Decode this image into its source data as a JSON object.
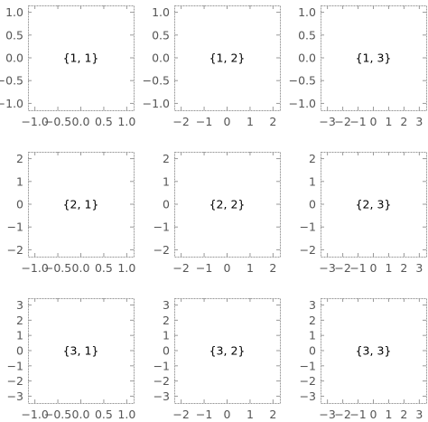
{
  "chart_data": {
    "type": "grid",
    "rows": 3,
    "cols": 3,
    "title": "",
    "panels": [
      {
        "row": 1,
        "col": 1,
        "label": "{1, 1}",
        "xlim": [
          -1.15,
          1.15
        ],
        "ylim": [
          -1.15,
          1.15
        ],
        "xticks": [
          -1.0,
          -0.5,
          0.0,
          0.5,
          1.0
        ],
        "xtick_labels": [
          "−1.0",
          "−0.5",
          "0.0",
          "0.5",
          "1.0"
        ],
        "yticks": [
          -1.0,
          -0.5,
          0.0,
          0.5,
          1.0
        ],
        "ytick_labels": [
          "−1.0",
          "−0.5",
          "0.0",
          "0.5",
          "1.0"
        ]
      },
      {
        "row": 1,
        "col": 2,
        "label": "{1, 2}",
        "xlim": [
          -2.3,
          2.3
        ],
        "ylim": [
          -1.15,
          1.15
        ],
        "xticks": [
          -2,
          -1,
          0,
          1,
          2
        ],
        "xtick_labels": [
          "−2",
          "−1",
          "0",
          "1",
          "2"
        ],
        "yticks": [
          -1.0,
          -0.5,
          0.0,
          0.5,
          1.0
        ],
        "ytick_labels": [
          "−1.0",
          "−0.5",
          "0.0",
          "0.5",
          "1.0"
        ]
      },
      {
        "row": 1,
        "col": 3,
        "label": "{1, 3}",
        "xlim": [
          -3.45,
          3.45
        ],
        "ylim": [
          -1.15,
          1.15
        ],
        "xticks": [
          -3,
          -2,
          -1,
          0,
          1,
          2,
          3
        ],
        "xtick_labels": [
          "−3",
          "−2",
          "−1",
          "0",
          "1",
          "2",
          "3"
        ],
        "yticks": [
          -1.0,
          -0.5,
          0.0,
          0.5,
          1.0
        ],
        "ytick_labels": [
          "−1.0",
          "−0.5",
          "0.0",
          "0.5",
          "1.0"
        ]
      },
      {
        "row": 2,
        "col": 1,
        "label": "{2, 1}",
        "xlim": [
          -1.15,
          1.15
        ],
        "ylim": [
          -2.3,
          2.3
        ],
        "xticks": [
          -1.0,
          -0.5,
          0.0,
          0.5,
          1.0
        ],
        "xtick_labels": [
          "−1.0",
          "−0.5",
          "0.0",
          "0.5",
          "1.0"
        ],
        "yticks": [
          -2,
          -1,
          0,
          1,
          2
        ],
        "ytick_labels": [
          "−2",
          "−1",
          "0",
          "1",
          "2"
        ]
      },
      {
        "row": 2,
        "col": 2,
        "label": "{2, 2}",
        "xlim": [
          -2.3,
          2.3
        ],
        "ylim": [
          -2.3,
          2.3
        ],
        "xticks": [
          -2,
          -1,
          0,
          1,
          2
        ],
        "xtick_labels": [
          "−2",
          "−1",
          "0",
          "1",
          "2"
        ],
        "yticks": [
          -2,
          -1,
          0,
          1,
          2
        ],
        "ytick_labels": [
          "−2",
          "−1",
          "0",
          "1",
          "2"
        ]
      },
      {
        "row": 2,
        "col": 3,
        "label": "{2, 3}",
        "xlim": [
          -3.45,
          3.45
        ],
        "ylim": [
          -2.3,
          2.3
        ],
        "xticks": [
          -3,
          -2,
          -1,
          0,
          1,
          2,
          3
        ],
        "xtick_labels": [
          "−3",
          "−2",
          "−1",
          "0",
          "1",
          "2",
          "3"
        ],
        "yticks": [
          -2,
          -1,
          0,
          1,
          2
        ],
        "ytick_labels": [
          "−2",
          "−1",
          "0",
          "1",
          "2"
        ]
      },
      {
        "row": 3,
        "col": 1,
        "label": "{3, 1}",
        "xlim": [
          -1.15,
          1.15
        ],
        "ylim": [
          -3.45,
          3.45
        ],
        "xticks": [
          -1.0,
          -0.5,
          0.0,
          0.5,
          1.0
        ],
        "xtick_labels": [
          "−1.0",
          "−0.5",
          "0.0",
          "0.5",
          "1.0"
        ],
        "yticks": [
          -3,
          -2,
          -1,
          0,
          1,
          2,
          3
        ],
        "ytick_labels": [
          "−3",
          "−2",
          "−1",
          "0",
          "1",
          "2",
          "3"
        ]
      },
      {
        "row": 3,
        "col": 2,
        "label": "{3, 2}",
        "xlim": [
          -2.3,
          2.3
        ],
        "ylim": [
          -3.45,
          3.45
        ],
        "xticks": [
          -2,
          -1,
          0,
          1,
          2
        ],
        "xtick_labels": [
          "−2",
          "−1",
          "0",
          "1",
          "2"
        ],
        "yticks": [
          -3,
          -2,
          -1,
          0,
          1,
          2,
          3
        ],
        "ytick_labels": [
          "−3",
          "−2",
          "−1",
          "0",
          "1",
          "2",
          "3"
        ]
      },
      {
        "row": 3,
        "col": 3,
        "label": "{3, 3}",
        "xlim": [
          -3.45,
          3.45
        ],
        "ylim": [
          -3.45,
          3.45
        ],
        "xticks": [
          -3,
          -2,
          -1,
          0,
          1,
          2,
          3
        ],
        "xtick_labels": [
          "−3",
          "−2",
          "−1",
          "0",
          "1",
          "2",
          "3"
        ],
        "yticks": [
          -3,
          -2,
          -1,
          0,
          1,
          2,
          3
        ],
        "ytick_labels": [
          "−3",
          "−2",
          "−1",
          "0",
          "1",
          "2",
          "3"
        ]
      }
    ],
    "grid": false,
    "frame_color": "#9a9a9a",
    "tick_label_color": "#555555"
  }
}
